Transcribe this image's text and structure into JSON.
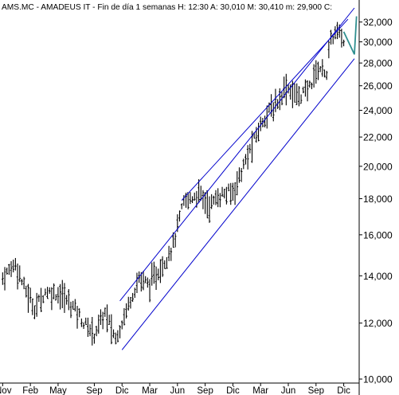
{
  "header": {
    "symbol": "AMS.MC",
    "name": "AMADEUS IT",
    "period": "Fin de día 1 semanas",
    "quote": {
      "h_label": "H:",
      "h_value": "12:30",
      "a_label": "A:",
      "a_value": "30,010",
      "m_label": "M:",
      "m_value": "30,410",
      "m2_label": "m:",
      "m2_value": "29,900",
      "c_label": "C:"
    }
  },
  "chart_data": {
    "type": "ohlc",
    "title": "AMS.MC - AMADEUS IT - Fin de día 1 semanas",
    "y_scale": "log",
    "ylim": [
      10000,
      33500
    ],
    "y_ticks": [
      {
        "value": 32000,
        "label": "32,000"
      },
      {
        "value": 30000,
        "label": "30,000"
      },
      {
        "value": 28000,
        "label": "28,000"
      },
      {
        "value": 26000,
        "label": "26,000"
      },
      {
        "value": 24000,
        "label": "24,000"
      },
      {
        "value": 22000,
        "label": "22,000"
      },
      {
        "value": 20000,
        "label": "20,000"
      },
      {
        "value": 18000,
        "label": "18,000"
      },
      {
        "value": 16000,
        "label": "16,000"
      },
      {
        "value": 14000,
        "label": "14,000"
      },
      {
        "value": 12000,
        "label": "12,000"
      },
      {
        "value": 10000,
        "label": "10,000"
      }
    ],
    "x_ticks": [
      {
        "index": 0,
        "label": "Nov"
      },
      {
        "index": 13,
        "label": "Feb"
      },
      {
        "index": 26,
        "label": "May"
      },
      {
        "index": 43,
        "label": "Sep"
      },
      {
        "index": 56,
        "label": "Dic"
      },
      {
        "index": 69,
        "label": "Mar"
      },
      {
        "index": 82,
        "label": "Jun"
      },
      {
        "index": 95,
        "label": "Sep"
      },
      {
        "index": 108,
        "label": "Dic"
      },
      {
        "index": 121,
        "label": "Mar"
      },
      {
        "index": 134,
        "label": "Jun"
      },
      {
        "index": 147,
        "label": "Sep"
      },
      {
        "index": 160,
        "label": "Dic"
      }
    ],
    "x_count": 167,
    "anchors": [
      {
        "i": 0,
        "v": 13900
      },
      {
        "i": 6,
        "v": 14600
      },
      {
        "i": 10,
        "v": 13500
      },
      {
        "i": 15,
        "v": 12600
      },
      {
        "i": 20,
        "v": 13300
      },
      {
        "i": 27,
        "v": 13200
      },
      {
        "i": 34,
        "v": 12600
      },
      {
        "i": 38,
        "v": 12000
      },
      {
        "i": 43,
        "v": 11600
      },
      {
        "i": 48,
        "v": 12400
      },
      {
        "i": 53,
        "v": 11400
      },
      {
        "i": 60,
        "v": 13000
      },
      {
        "i": 64,
        "v": 13900
      },
      {
        "i": 69,
        "v": 13600
      },
      {
        "i": 75,
        "v": 14500
      },
      {
        "i": 80,
        "v": 15500
      },
      {
        "i": 85,
        "v": 17800
      },
      {
        "i": 92,
        "v": 18300
      },
      {
        "i": 97,
        "v": 17600
      },
      {
        "i": 102,
        "v": 18200
      },
      {
        "i": 108,
        "v": 18400
      },
      {
        "i": 113,
        "v": 20000
      },
      {
        "i": 118,
        "v": 21800
      },
      {
        "i": 123,
        "v": 23600
      },
      {
        "i": 128,
        "v": 24400
      },
      {
        "i": 133,
        "v": 26000
      },
      {
        "i": 138,
        "v": 25100
      },
      {
        "i": 143,
        "v": 25600
      },
      {
        "i": 148,
        "v": 27600
      },
      {
        "i": 152,
        "v": 27200
      },
      {
        "i": 154,
        "v": 30300
      },
      {
        "i": 157,
        "v": 31000
      },
      {
        "i": 160,
        "v": 30000
      }
    ],
    "channel_lines": [
      {
        "name": "upper",
        "start": {
          "i": 55,
          "v": 12900
        },
        "end": {
          "i": 165,
          "v": 33500
        }
      },
      {
        "name": "middle",
        "start": {
          "i": 84,
          "v": 17900
        },
        "end": {
          "i": 162,
          "v": 32300
        }
      },
      {
        "name": "lower",
        "start": {
          "i": 56,
          "v": 11000
        },
        "end": {
          "i": 165,
          "v": 28400
        }
      }
    ],
    "projection": {
      "points": [
        {
          "i": 160,
          "v": 31000
        },
        {
          "i": 165,
          "v": 28800
        },
        {
          "i": 166,
          "v": 32600
        }
      ]
    },
    "grid": false
  },
  "colors": {
    "background": "#ffffff",
    "bars": "#000000",
    "channel": "#0000cc",
    "projection": "#2f8f8f",
    "axis": "#000000",
    "text": "#000000"
  }
}
